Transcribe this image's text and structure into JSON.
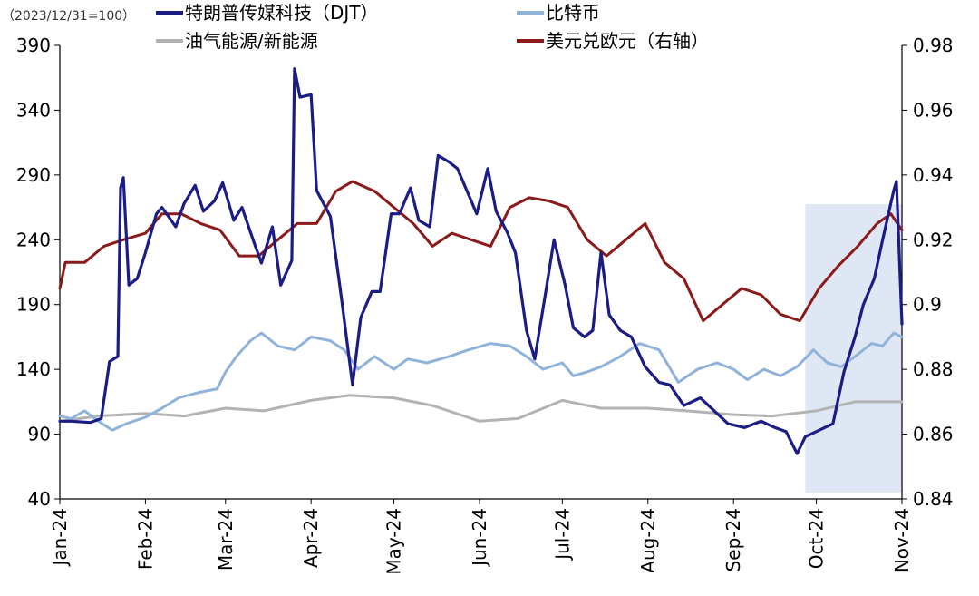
{
  "chart_data": {
    "type": "line",
    "note": "（2023/12/31=100）",
    "x_tick_labels": [
      "Jan-24",
      "Feb-24",
      "Mar-24",
      "Apr-24",
      "May-24",
      "Jun-24",
      "Jul-24",
      "Aug-24",
      "Sep-24",
      "Oct-24",
      "Nov-24"
    ],
    "x_tick_dates": [
      "2024-01-01",
      "2024-02-01",
      "2024-03-01",
      "2024-04-01",
      "2024-05-01",
      "2024-06-01",
      "2024-07-01",
      "2024-08-01",
      "2024-09-01",
      "2024-10-01",
      "2024-11-01"
    ],
    "xlim": [
      "2024-01-01",
      "2024-11-01"
    ],
    "left_axis": {
      "ylim": [
        40,
        390
      ],
      "ticks": [
        "40",
        "90",
        "140",
        "190",
        "240",
        "290",
        "340",
        "390"
      ]
    },
    "right_axis": {
      "ylim": [
        0.84,
        0.98
      ],
      "ticks": [
        "0.84",
        "0.86",
        "0.88",
        "0.9",
        "0.92",
        "0.94",
        "0.96",
        "0.98"
      ]
    },
    "grid": false,
    "legend_position": "top",
    "highlight": {
      "from": "2024-09-27",
      "to": "2024-11-01",
      "color": "#dfe6f4"
    },
    "series": [
      {
        "name": "特朗普传媒科技（DJT）",
        "axis": "left",
        "color": "#1c1c86",
        "x": [
          "2024-01-01",
          "2024-01-05",
          "2024-01-12",
          "2024-01-16",
          "2024-01-19",
          "2024-01-22",
          "2024-01-23",
          "2024-01-24",
          "2024-01-26",
          "2024-01-29",
          "2024-02-01",
          "2024-02-05",
          "2024-02-07",
          "2024-02-12",
          "2024-02-15",
          "2024-02-19",
          "2024-02-22",
          "2024-02-26",
          "2024-02-29",
          "2024-03-04",
          "2024-03-07",
          "2024-03-11",
          "2024-03-14",
          "2024-03-18",
          "2024-03-21",
          "2024-03-25",
          "2024-03-26",
          "2024-03-28",
          "2024-04-01",
          "2024-04-03",
          "2024-04-08",
          "2024-04-12",
          "2024-04-16",
          "2024-04-19",
          "2024-04-23",
          "2024-04-26",
          "2024-04-30",
          "2024-05-03",
          "2024-05-07",
          "2024-05-10",
          "2024-05-14",
          "2024-05-17",
          "2024-05-21",
          "2024-05-24",
          "2024-05-28",
          "2024-05-31",
          "2024-06-04",
          "2024-06-07",
          "2024-06-11",
          "2024-06-14",
          "2024-06-18",
          "2024-06-21",
          "2024-06-25",
          "2024-06-28",
          "2024-07-02",
          "2024-07-05",
          "2024-07-09",
          "2024-07-12",
          "2024-07-15",
          "2024-07-18",
          "2024-07-22",
          "2024-07-26",
          "2024-07-31",
          "2024-08-05",
          "2024-08-09",
          "2024-08-14",
          "2024-08-20",
          "2024-08-26",
          "2024-08-30",
          "2024-09-05",
          "2024-09-11",
          "2024-09-16",
          "2024-09-20",
          "2024-09-24",
          "2024-09-27",
          "2024-10-02",
          "2024-10-07",
          "2024-10-11",
          "2024-10-15",
          "2024-10-18",
          "2024-10-22",
          "2024-10-25",
          "2024-10-29",
          "2024-10-30",
          "2024-11-01"
        ],
        "values": [
          100,
          100,
          99,
          102,
          146,
          150,
          280,
          288,
          205,
          210,
          230,
          260,
          265,
          250,
          268,
          282,
          262,
          270,
          284,
          255,
          265,
          240,
          222,
          250,
          205,
          224,
          372,
          350,
          352,
          278,
          258,
          195,
          128,
          180,
          200,
          200,
          260,
          260,
          280,
          255,
          250,
          305,
          300,
          295,
          275,
          260,
          295,
          262,
          246,
          230,
          170,
          148,
          200,
          240,
          205,
          172,
          165,
          170,
          230,
          182,
          170,
          165,
          142,
          130,
          128,
          112,
          118,
          106,
          98,
          95,
          100,
          95,
          92,
          75,
          88,
          93,
          98,
          138,
          165,
          190,
          210,
          240,
          278,
          285,
          175
        ]
      },
      {
        "name": "比特币",
        "axis": "left",
        "color": "#8fb3d9",
        "x": [
          "2024-01-01",
          "2024-01-05",
          "2024-01-10",
          "2024-01-15",
          "2024-01-20",
          "2024-01-25",
          "2024-02-01",
          "2024-02-07",
          "2024-02-13",
          "2024-02-20",
          "2024-02-27",
          "2024-03-01",
          "2024-03-05",
          "2024-03-10",
          "2024-03-14",
          "2024-03-20",
          "2024-03-26",
          "2024-04-01",
          "2024-04-08",
          "2024-04-13",
          "2024-04-18",
          "2024-04-24",
          "2024-05-01",
          "2024-05-06",
          "2024-05-13",
          "2024-05-21",
          "2024-05-28",
          "2024-06-05",
          "2024-06-12",
          "2024-06-18",
          "2024-06-24",
          "2024-07-01",
          "2024-07-05",
          "2024-07-10",
          "2024-07-15",
          "2024-07-22",
          "2024-07-29",
          "2024-08-05",
          "2024-08-12",
          "2024-08-19",
          "2024-08-26",
          "2024-09-01",
          "2024-09-06",
          "2024-09-12",
          "2024-09-18",
          "2024-09-24",
          "2024-09-30",
          "2024-10-05",
          "2024-10-10",
          "2024-10-15",
          "2024-10-21",
          "2024-10-25",
          "2024-10-29",
          "2024-11-01"
        ],
        "values": [
          104,
          102,
          108,
          100,
          93,
          98,
          103,
          110,
          118,
          122,
          125,
          138,
          150,
          162,
          168,
          158,
          155,
          165,
          162,
          155,
          140,
          150,
          140,
          148,
          145,
          150,
          155,
          160,
          158,
          150,
          140,
          145,
          135,
          138,
          142,
          150,
          160,
          155,
          130,
          140,
          145,
          140,
          132,
          140,
          135,
          142,
          155,
          145,
          142,
          150,
          160,
          158,
          168,
          165
        ]
      },
      {
        "name": "油气能源/新能源",
        "axis": "left",
        "color": "#b3b3b3",
        "x": [
          "2024-01-01",
          "2024-01-15",
          "2024-02-01",
          "2024-02-15",
          "2024-03-01",
          "2024-03-15",
          "2024-04-01",
          "2024-04-15",
          "2024-05-01",
          "2024-05-15",
          "2024-06-01",
          "2024-06-15",
          "2024-07-01",
          "2024-07-15",
          "2024-08-01",
          "2024-08-15",
          "2024-09-01",
          "2024-09-15",
          "2024-10-01",
          "2024-10-15",
          "2024-11-01"
        ],
        "values": [
          100,
          104,
          106,
          104,
          110,
          108,
          116,
          120,
          118,
          112,
          100,
          102,
          116,
          110,
          110,
          108,
          105,
          104,
          108,
          115,
          115
        ]
      },
      {
        "name": "美元兑欧元（右轴）",
        "axis": "right",
        "color": "#8b1a1a",
        "x": [
          "2024-01-01",
          "2024-01-03",
          "2024-01-10",
          "2024-01-17",
          "2024-01-24",
          "2024-02-01",
          "2024-02-07",
          "2024-02-14",
          "2024-02-21",
          "2024-02-28",
          "2024-03-06",
          "2024-03-13",
          "2024-03-20",
          "2024-03-27",
          "2024-04-03",
          "2024-04-10",
          "2024-04-16",
          "2024-04-24",
          "2024-05-01",
          "2024-05-08",
          "2024-05-15",
          "2024-05-22",
          "2024-05-29",
          "2024-06-05",
          "2024-06-12",
          "2024-06-19",
          "2024-06-26",
          "2024-07-03",
          "2024-07-10",
          "2024-07-17",
          "2024-07-24",
          "2024-07-31",
          "2024-08-07",
          "2024-08-14",
          "2024-08-21",
          "2024-08-28",
          "2024-09-04",
          "2024-09-11",
          "2024-09-18",
          "2024-09-25",
          "2024-10-02",
          "2024-10-09",
          "2024-10-16",
          "2024-10-23",
          "2024-10-28",
          "2024-11-01"
        ],
        "values": [
          0.905,
          0.913,
          0.913,
          0.918,
          0.92,
          0.922,
          0.928,
          0.928,
          0.925,
          0.923,
          0.915,
          0.915,
          0.92,
          0.925,
          0.925,
          0.935,
          0.938,
          0.935,
          0.93,
          0.925,
          0.918,
          0.922,
          0.92,
          0.918,
          0.93,
          0.933,
          0.932,
          0.93,
          0.92,
          0.915,
          0.92,
          0.925,
          0.913,
          0.908,
          0.895,
          0.9,
          0.905,
          0.903,
          0.897,
          0.895,
          0.905,
          0.912,
          0.918,
          0.925,
          0.928,
          0.923
        ]
      }
    ]
  }
}
